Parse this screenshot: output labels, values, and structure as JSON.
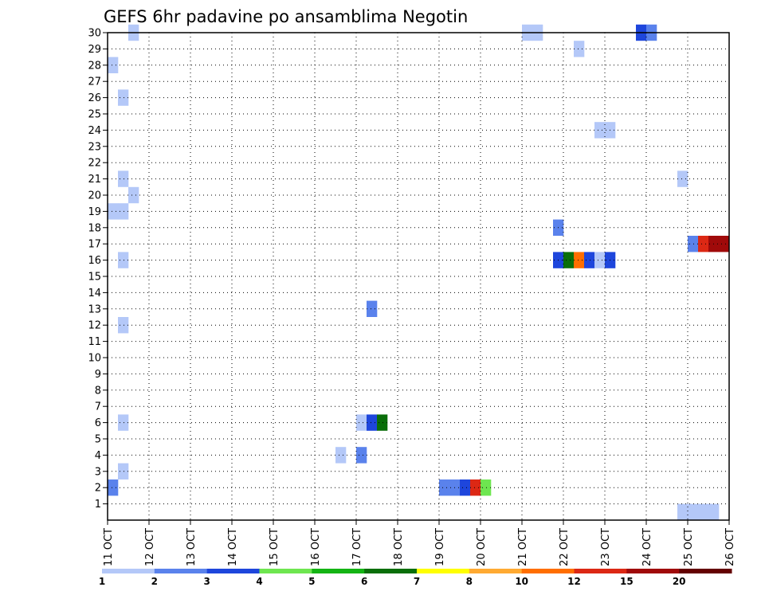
{
  "chart_data": {
    "type": "heatmap",
    "title": "GEFS 6hr padavine po ansamblima Negotin",
    "xlabel": "",
    "ylabel": "",
    "x_ticks": [
      "11 OCT",
      "12 OCT",
      "13 OCT",
      "14 OCT",
      "15 OCT",
      "16 OCT",
      "17 OCT",
      "18 OCT",
      "19 OCT",
      "20 OCT",
      "21 OCT",
      "22 OCT",
      "23 OCT",
      "24 OCT",
      "25 OCT",
      "26 OCT"
    ],
    "y_ticks": [
      "1",
      "2",
      "3",
      "4",
      "5",
      "6",
      "7",
      "8",
      "9",
      "10",
      "11",
      "12",
      "13",
      "14",
      "15",
      "16",
      "17",
      "18",
      "19",
      "20",
      "21",
      "22",
      "23",
      "24",
      "25",
      "26",
      "27",
      "28",
      "29",
      "30"
    ],
    "xlim": [
      0,
      15
    ],
    "ylim": [
      0,
      30
    ],
    "grid": true,
    "legend": {
      "placement": "bottom",
      "labels": [
        "1",
        "2",
        "3",
        "4",
        "5",
        "6",
        "7",
        "8",
        "10",
        "12",
        "15",
        "20"
      ],
      "colors": [
        "#b4c8f8",
        "#5a82ec",
        "#1e46dc",
        "#6ee650",
        "#14b414",
        "#0a6e0a",
        "#ffff00",
        "#ffaa32",
        "#ff6e00",
        "#dc2814",
        "#a00a0a",
        "#640000"
      ]
    },
    "cells": [
      {
        "x": 0.0,
        "y": 1.5,
        "level": 1
      },
      {
        "x": 0.25,
        "y": 2.5,
        "level": 0
      },
      {
        "x": 0.25,
        "y": 5.5,
        "level": 0
      },
      {
        "x": 0.25,
        "y": 11.5,
        "level": 0
      },
      {
        "x": 0.25,
        "y": 15.5,
        "level": 0
      },
      {
        "x": 0.0,
        "y": 18.5,
        "level": 0
      },
      {
        "x": 0.25,
        "y": 18.5,
        "level": 0
      },
      {
        "x": 0.5,
        "y": 19.5,
        "level": 0
      },
      {
        "x": 0.25,
        "y": 20.5,
        "level": 0
      },
      {
        "x": 0.25,
        "y": 25.5,
        "level": 0
      },
      {
        "x": 0.0,
        "y": 27.5,
        "level": 0
      },
      {
        "x": 0.5,
        "y": 29.5,
        "level": 0
      },
      {
        "x": 5.5,
        "y": 3.5,
        "level": 0
      },
      {
        "x": 6.0,
        "y": 3.5,
        "level": 1
      },
      {
        "x": 6.0,
        "y": 5.5,
        "level": 0
      },
      {
        "x": 6.25,
        "y": 5.5,
        "level": 2
      },
      {
        "x": 6.5,
        "y": 5.5,
        "level": 5
      },
      {
        "x": 6.25,
        "y": 12.5,
        "level": 1
      },
      {
        "x": 8.0,
        "y": 1.5,
        "level": 1
      },
      {
        "x": 8.25,
        "y": 1.5,
        "level": 1
      },
      {
        "x": 8.5,
        "y": 1.5,
        "level": 2
      },
      {
        "x": 8.75,
        "y": 1.5,
        "level": 9
      },
      {
        "x": 9.0,
        "y": 1.5,
        "level": 3
      },
      {
        "x": 10.0,
        "y": 29.5,
        "level": 0
      },
      {
        "x": 10.25,
        "y": 29.5,
        "level": 0
      },
      {
        "x": 10.75,
        "y": 15.5,
        "level": 2
      },
      {
        "x": 11.0,
        "y": 15.5,
        "level": 5
      },
      {
        "x": 11.25,
        "y": 15.5,
        "level": 8
      },
      {
        "x": 11.5,
        "y": 15.5,
        "level": 2
      },
      {
        "x": 11.75,
        "y": 15.5,
        "level": 0
      },
      {
        "x": 12.0,
        "y": 15.5,
        "level": 2
      },
      {
        "x": 10.75,
        "y": 17.5,
        "level": 1
      },
      {
        "x": 11.25,
        "y": 28.5,
        "level": 0
      },
      {
        "x": 11.75,
        "y": 23.5,
        "level": 0
      },
      {
        "x": 12.0,
        "y": 23.5,
        "level": 0
      },
      {
        "x": 12.75,
        "y": 29.5,
        "level": 2
      },
      {
        "x": 13.0,
        "y": 29.5,
        "level": 1
      },
      {
        "x": 13.75,
        "y": 20.5,
        "level": 0
      },
      {
        "x": 14.0,
        "y": 16.5,
        "level": 1
      },
      {
        "x": 14.25,
        "y": 16.5,
        "level": 9
      },
      {
        "x": 14.5,
        "y": 16.5,
        "level": 10
      },
      {
        "x": 14.75,
        "y": 16.5,
        "level": 10
      },
      {
        "x": 13.75,
        "y": 0.0,
        "level": 0
      },
      {
        "x": 14.0,
        "y": 0.0,
        "level": 0
      },
      {
        "x": 14.25,
        "y": 0.0,
        "level": 0
      },
      {
        "x": 14.5,
        "y": 0.0,
        "level": 0
      }
    ]
  }
}
